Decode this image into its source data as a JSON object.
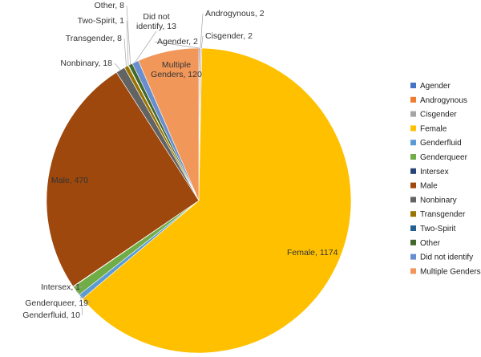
{
  "chart_data": {
    "type": "pie",
    "title": "",
    "legend_position": "right",
    "categories": [
      "Agender",
      "Androgynous",
      "Cisgender",
      "Female",
      "Genderfluid",
      "Genderqueer",
      "Intersex",
      "Male",
      "Nonbinary",
      "Transgender",
      "Two-Spirit",
      "Other",
      "Did not identify",
      "Multiple Genders"
    ],
    "values": [
      2,
      2,
      2,
      1174,
      10,
      19,
      1,
      470,
      18,
      8,
      1,
      8,
      13,
      120
    ],
    "colors": [
      "#4472C4",
      "#ED7D31",
      "#A5A5A5",
      "#FFC000",
      "#5B9BD5",
      "#70AD47",
      "#264478",
      "#9E480E",
      "#636363",
      "#997300",
      "#255E91",
      "#43682B",
      "#698ED0",
      "#F1975A"
    ],
    "data_labels": [
      "Agender, 2",
      "Androgynous, 2",
      "Cisgender, 2",
      "Female, 1174",
      "Genderfluid, 10",
      "Genderqueer, 19",
      "Intersex, 1",
      "Male, 470",
      "Nonbinary, 18",
      "Transgender, 8",
      "Two-Spirit, 1",
      "Other, 8",
      "Did not\nidentify, 13",
      "Multiple\nGenders, 120"
    ]
  }
}
